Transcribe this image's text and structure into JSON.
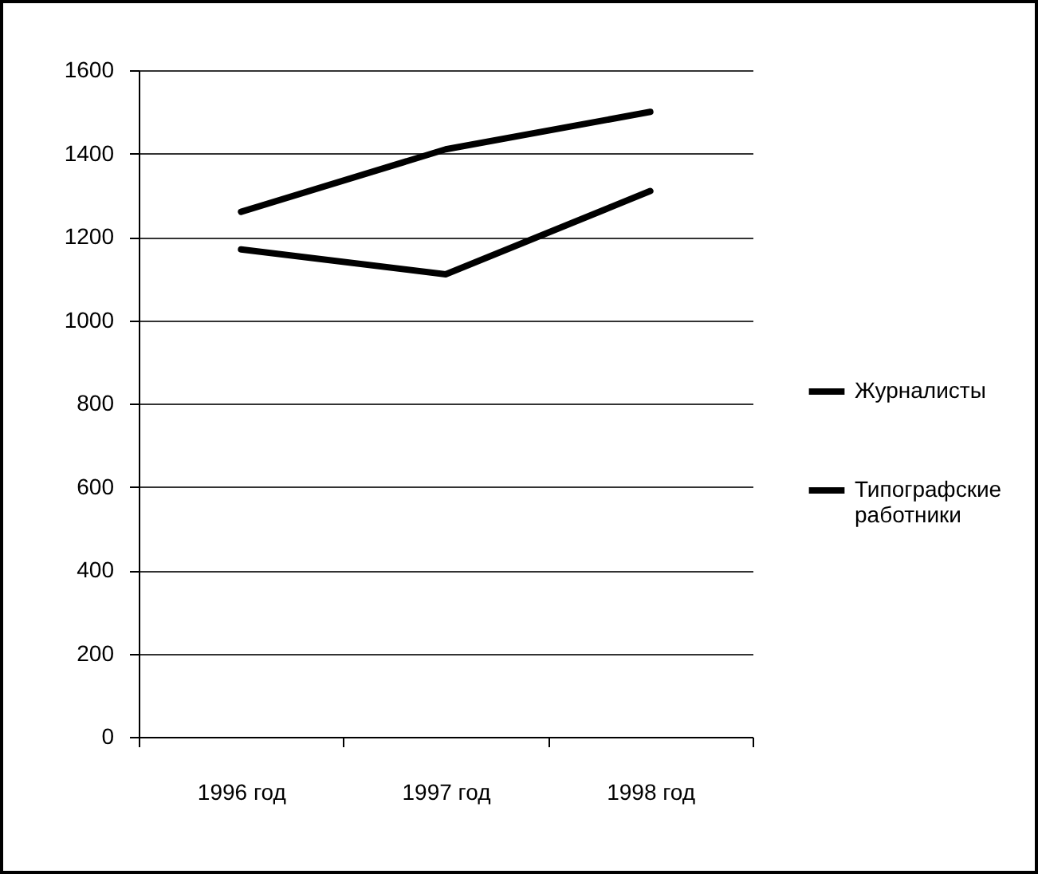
{
  "chart_data": {
    "type": "line",
    "categories": [
      "1996 год",
      "1997 год",
      "1998 год"
    ],
    "series": [
      {
        "name": "Журналисты",
        "color": "#000000",
        "values": [
          1260,
          1410,
          1500
        ]
      },
      {
        "name": "Типографские работники",
        "color": "#000000",
        "values": [
          1170,
          1110,
          1310
        ]
      }
    ],
    "ylim": [
      0,
      1600
    ],
    "yticks": [
      0,
      200,
      400,
      600,
      800,
      1000,
      1200,
      1400,
      1600
    ],
    "grid": "y",
    "legend": "right",
    "line_style": "solid"
  }
}
